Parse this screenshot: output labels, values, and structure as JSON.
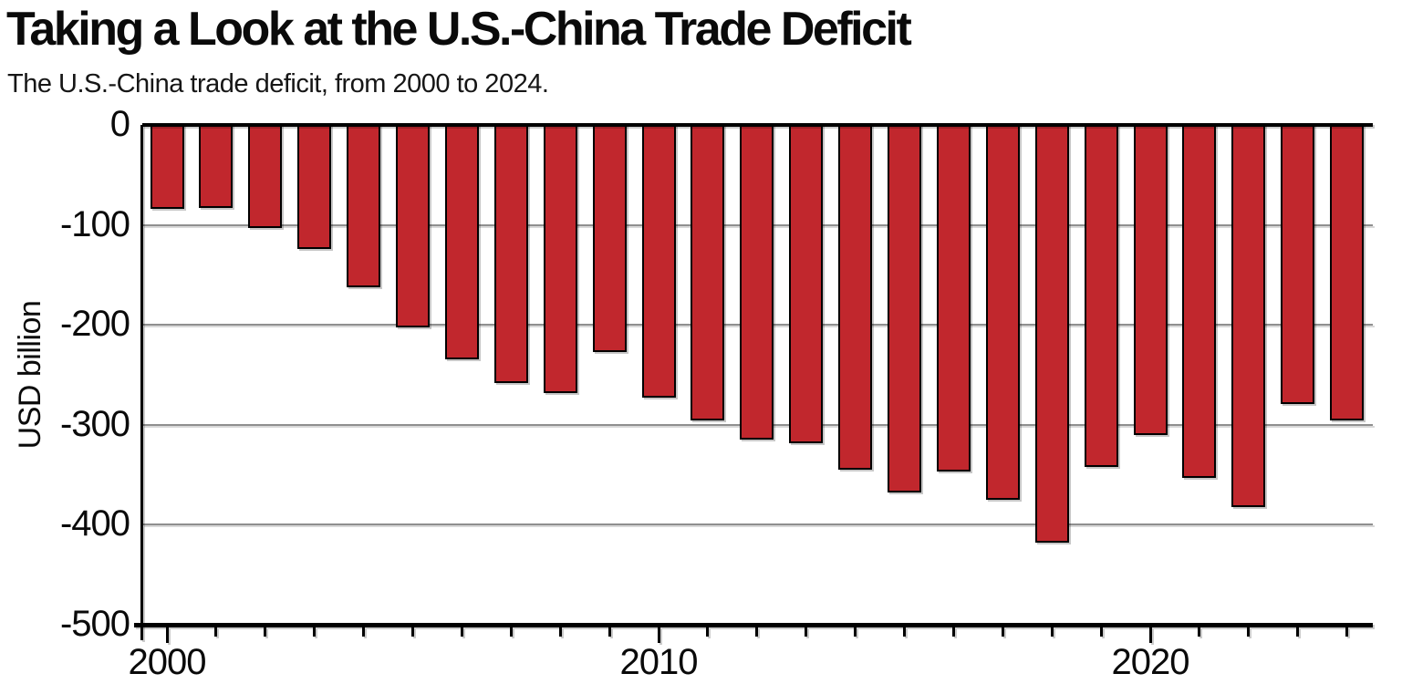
{
  "header": {
    "title": "Taking a Look at the U.S.-China Trade Deficit",
    "subtitle": "The U.S.-China trade deficit, from 2000 to 2024."
  },
  "chart_data": {
    "type": "bar",
    "title": "Taking a Look at the U.S.-China Trade Deficit",
    "subtitle": "The U.S.-China trade deficit, from 2000 to 2024.",
    "xlabel": "",
    "ylabel": "USD billion",
    "categories": [
      2000,
      2001,
      2002,
      2003,
      2004,
      2005,
      2006,
      2007,
      2008,
      2009,
      2010,
      2011,
      2012,
      2013,
      2014,
      2015,
      2016,
      2017,
      2018,
      2019,
      2020,
      2021,
      2022,
      2023,
      2024
    ],
    "values": [
      -83.8,
      -83.1,
      -103.1,
      -124.1,
      -162.3,
      -202.3,
      -234.1,
      -258.5,
      -268.0,
      -226.9,
      -273.0,
      -295.2,
      -315.1,
      -318.7,
      -344.8,
      -367.3,
      -346.8,
      -375.2,
      -418.2,
      -342.6,
      -310.3,
      -353.5,
      -382.3,
      -279.4,
      -295.4
    ],
    "ylim": [
      -500,
      0
    ],
    "yticks": [
      0,
      -100,
      -200,
      -300,
      -400,
      -500
    ],
    "xticks_labeled": [
      2000,
      2010,
      2020
    ],
    "grid": true,
    "legend": false,
    "bar_color": "#C1272D",
    "bar_border_color": "#000000",
    "gridline_color": "#8f8f8f",
    "axis_color": "#000000",
    "text_color": "#0a0a0a"
  }
}
